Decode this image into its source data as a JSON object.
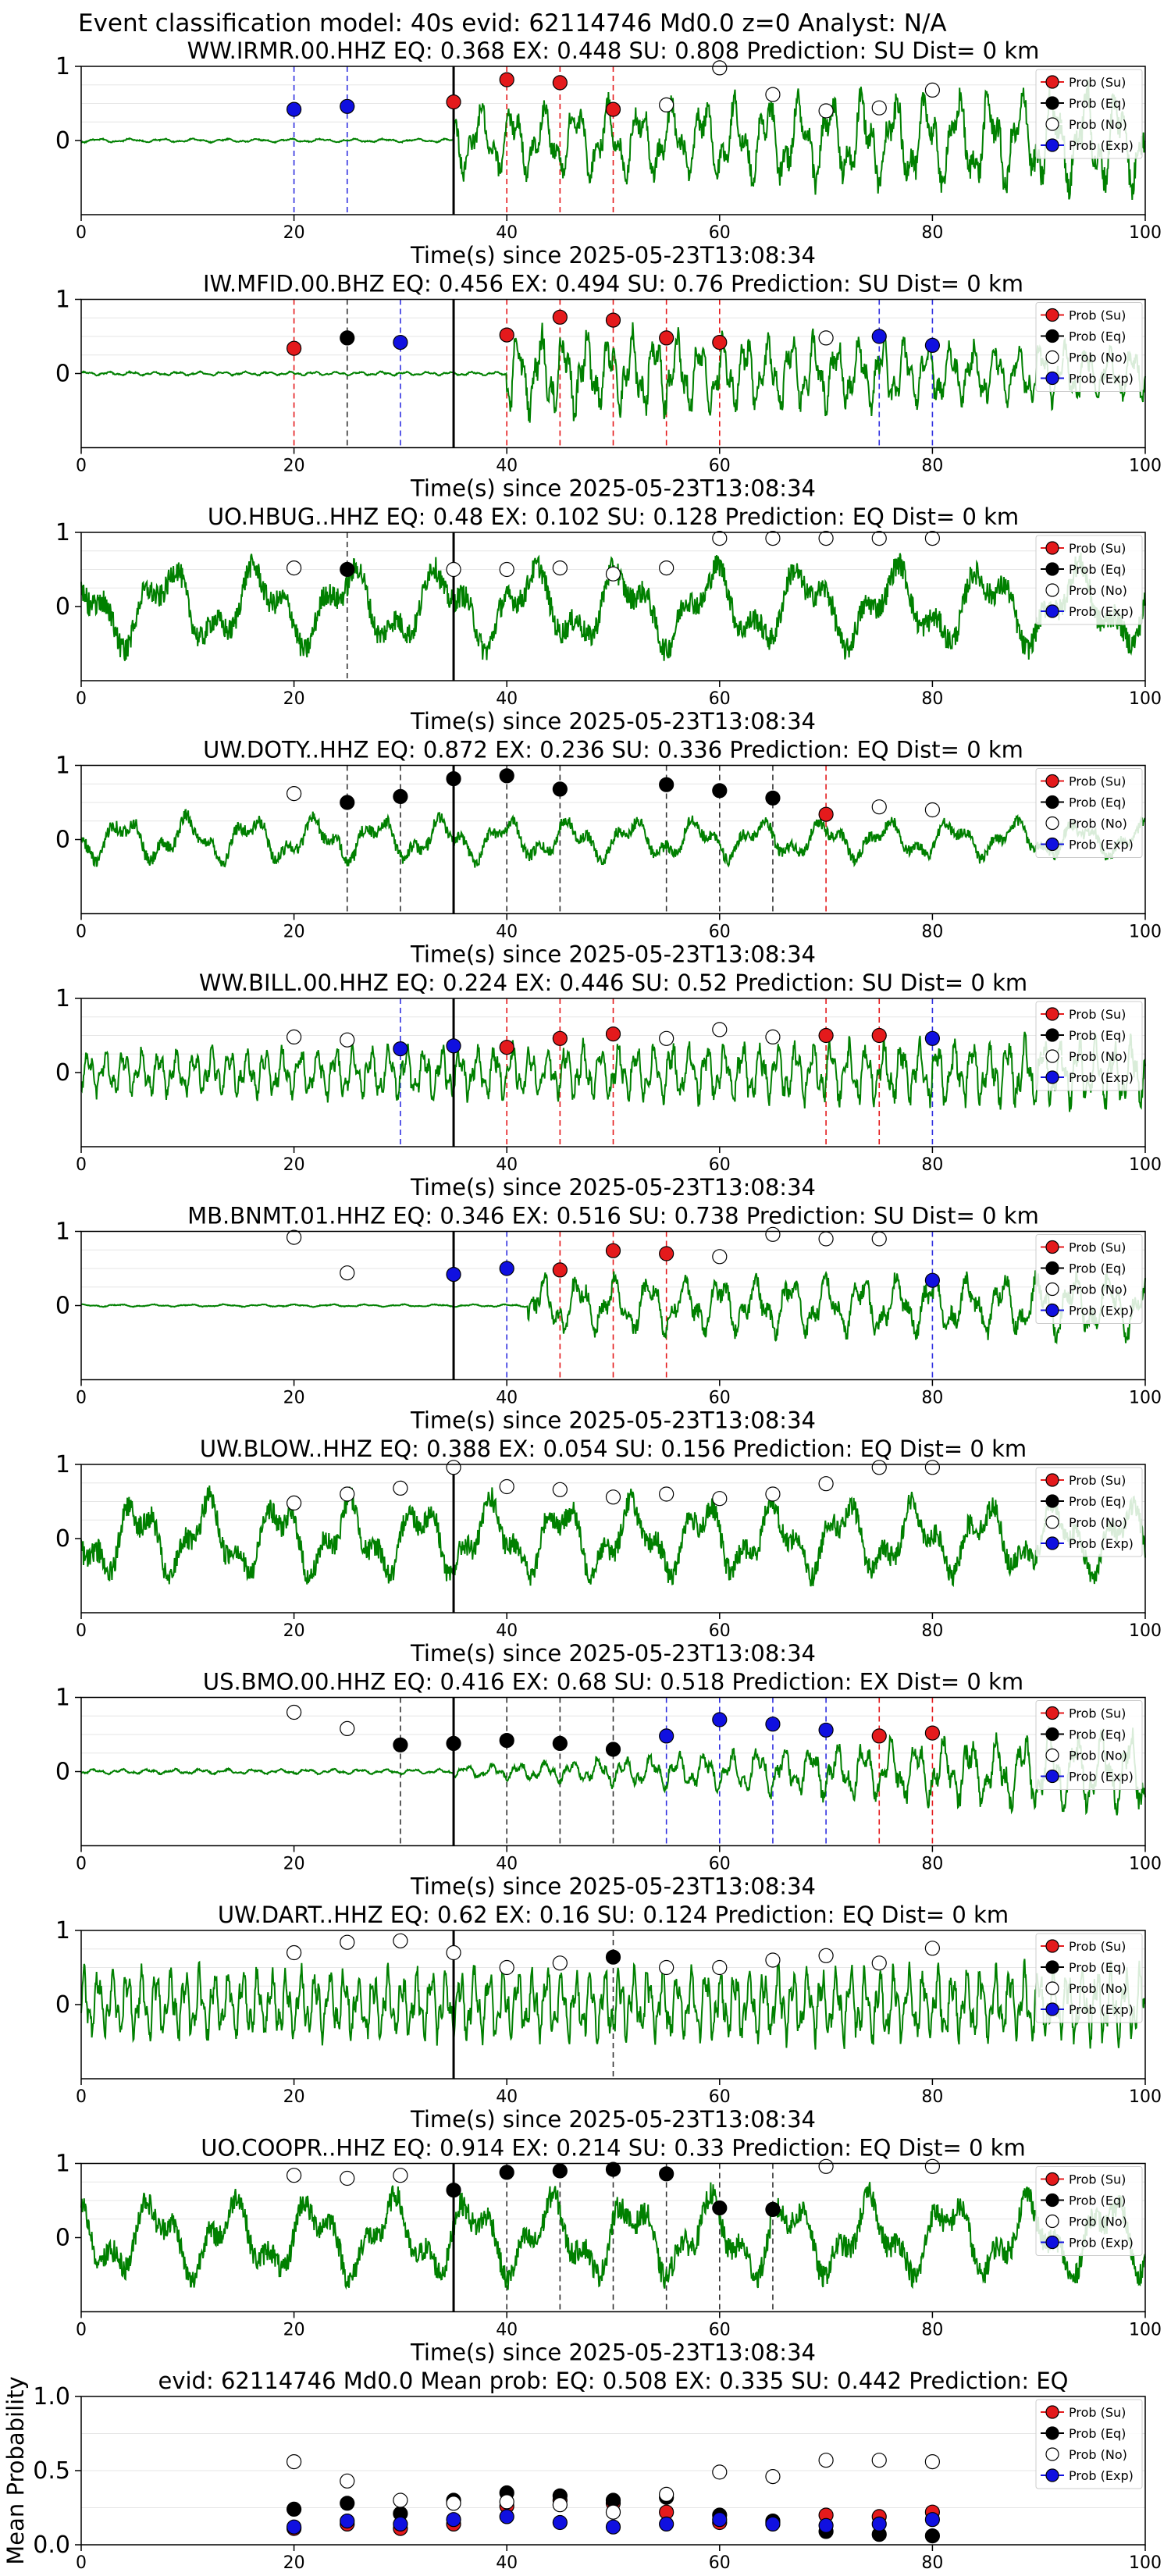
{
  "figure": {
    "title": "Event classification model: 40s evid: 62114746 Md0.0 z=0 Analyst: N/A"
  },
  "colors": {
    "su": "#e41a1c",
    "eq": "#000000",
    "no": "#ffffff",
    "exp": "#1010e0",
    "waveform": "#008000"
  },
  "legend_labels": [
    "Prob (Su)",
    "Prob (Eq)",
    "Prob (No)",
    "Prob (Exp)"
  ],
  "chart_data": [
    {
      "type": "line+scatter",
      "title": "WW.IRMR.00.HHZ   EQ: 0.368  EX: 0.448  SU: 0.808   Prediction: SU    Dist= 0 km",
      "xlabel": "Time(s) since 2025-05-23T13:08:34",
      "xlim": [
        0,
        100
      ],
      "ylim": [
        -1,
        1
      ],
      "x_ticks": [
        "0",
        "20",
        "40",
        "60",
        "80",
        "100"
      ],
      "y_ticks": [
        "0",
        "1"
      ],
      "legend": "top-right",
      "onset_time": 35,
      "waveform": {
        "pre_amp": 0.03,
        "post_amp": 0.55,
        "post_start": 35,
        "end_amp": 0.85,
        "freq": 1.0
      },
      "points": [
        {
          "t": 20,
          "p": 0.42,
          "cls": "exp"
        },
        {
          "t": 25,
          "p": 0.46,
          "cls": "exp"
        },
        {
          "t": 35,
          "p": 0.52,
          "cls": "su"
        },
        {
          "t": 40,
          "p": 0.82,
          "cls": "su"
        },
        {
          "t": 45,
          "p": 0.78,
          "cls": "su"
        },
        {
          "t": 50,
          "p": 0.42,
          "cls": "su"
        },
        {
          "t": 55,
          "p": 0.48,
          "cls": "no"
        },
        {
          "t": 60,
          "p": 0.98,
          "cls": "no"
        },
        {
          "t": 65,
          "p": 0.62,
          "cls": "no"
        },
        {
          "t": 70,
          "p": 0.4,
          "cls": "no"
        },
        {
          "t": 75,
          "p": 0.44,
          "cls": "no"
        },
        {
          "t": 80,
          "p": 0.68,
          "cls": "no"
        }
      ]
    },
    {
      "type": "line+scatter",
      "title": "IW.MFID.00.BHZ   EQ: 0.456  EX: 0.494  SU: 0.76   Prediction: SU    Dist= 0 km",
      "xlabel": "Time(s) since 2025-05-23T13:08:34",
      "xlim": [
        0,
        100
      ],
      "ylim": [
        -1,
        1
      ],
      "x_ticks": [
        "0",
        "20",
        "40",
        "60",
        "80",
        "100"
      ],
      "y_ticks": [
        "0",
        "1"
      ],
      "legend": "top-right",
      "onset_time": 35,
      "waveform": {
        "pre_amp": 0.03,
        "post_amp": 0.7,
        "post_start": 40,
        "end_amp": 0.45,
        "freq": 1.4
      },
      "points": [
        {
          "t": 20,
          "p": 0.34,
          "cls": "su"
        },
        {
          "t": 25,
          "p": 0.48,
          "cls": "eq"
        },
        {
          "t": 30,
          "p": 0.42,
          "cls": "exp"
        },
        {
          "t": 40,
          "p": 0.52,
          "cls": "su"
        },
        {
          "t": 45,
          "p": 0.76,
          "cls": "su"
        },
        {
          "t": 50,
          "p": 0.72,
          "cls": "su"
        },
        {
          "t": 55,
          "p": 0.48,
          "cls": "su"
        },
        {
          "t": 60,
          "p": 0.42,
          "cls": "su"
        },
        {
          "t": 70,
          "p": 0.48,
          "cls": "no"
        },
        {
          "t": 75,
          "p": 0.5,
          "cls": "exp"
        },
        {
          "t": 80,
          "p": 0.38,
          "cls": "exp"
        }
      ]
    },
    {
      "type": "line+scatter",
      "title": "UO.HBUG..HHZ   EQ: 0.48  EX: 0.102  SU: 0.128   Prediction: EQ    Dist= 0 km",
      "xlabel": "Time(s) since 2025-05-23T13:08:34",
      "xlim": [
        0,
        100
      ],
      "ylim": [
        -1,
        1
      ],
      "x_ticks": [
        "0",
        "20",
        "40",
        "60",
        "80",
        "100"
      ],
      "y_ticks": [
        "0",
        "1"
      ],
      "legend": "top-right",
      "onset_time": 35,
      "waveform": {
        "pre_amp": 0.7,
        "post_amp": 0.7,
        "post_start": 0,
        "end_amp": 0.7,
        "freq": 0.35
      },
      "points": [
        {
          "t": 20,
          "p": 0.52,
          "cls": "no"
        },
        {
          "t": 25,
          "p": 0.5,
          "cls": "eq"
        },
        {
          "t": 35,
          "p": 0.5,
          "cls": "no"
        },
        {
          "t": 40,
          "p": 0.5,
          "cls": "no"
        },
        {
          "t": 45,
          "p": 0.52,
          "cls": "no"
        },
        {
          "t": 50,
          "p": 0.44,
          "cls": "no"
        },
        {
          "t": 55,
          "p": 0.52,
          "cls": "no"
        },
        {
          "t": 60,
          "p": 0.92,
          "cls": "no"
        },
        {
          "t": 65,
          "p": 0.92,
          "cls": "no"
        },
        {
          "t": 70,
          "p": 0.92,
          "cls": "no"
        },
        {
          "t": 75,
          "p": 0.92,
          "cls": "no"
        },
        {
          "t": 80,
          "p": 0.92,
          "cls": "no"
        }
      ]
    },
    {
      "type": "line+scatter",
      "title": "UW.DOTY..HHZ   EQ: 0.872  EX: 0.236  SU: 0.336   Prediction: EQ    Dist= 0 km",
      "xlabel": "Time(s) since 2025-05-23T13:08:34",
      "xlim": [
        0,
        100
      ],
      "ylim": [
        -1,
        1
      ],
      "x_ticks": [
        "0",
        "20",
        "40",
        "60",
        "80",
        "100"
      ],
      "y_ticks": [
        "0",
        "1"
      ],
      "legend": "top-right",
      "onset_time": 35,
      "waveform": {
        "pre_amp": 0.35,
        "post_amp": 0.4,
        "post_start": 0,
        "end_amp": 0.3,
        "freq": 0.5
      },
      "points": [
        {
          "t": 20,
          "p": 0.62,
          "cls": "no"
        },
        {
          "t": 25,
          "p": 0.5,
          "cls": "eq"
        },
        {
          "t": 30,
          "p": 0.58,
          "cls": "eq"
        },
        {
          "t": 35,
          "p": 0.82,
          "cls": "eq"
        },
        {
          "t": 40,
          "p": 0.86,
          "cls": "eq"
        },
        {
          "t": 45,
          "p": 0.68,
          "cls": "eq"
        },
        {
          "t": 55,
          "p": 0.74,
          "cls": "eq"
        },
        {
          "t": 60,
          "p": 0.66,
          "cls": "eq"
        },
        {
          "t": 65,
          "p": 0.56,
          "cls": "eq"
        },
        {
          "t": 70,
          "p": 0.34,
          "cls": "su"
        },
        {
          "t": 75,
          "p": 0.44,
          "cls": "no"
        },
        {
          "t": 80,
          "p": 0.4,
          "cls": "no"
        }
      ]
    },
    {
      "type": "line+scatter",
      "title": "WW.BILL.00.HHZ   EQ: 0.224  EX: 0.446  SU: 0.52   Prediction: SU    Dist= 0 km",
      "xlabel": "Time(s) since 2025-05-23T13:08:34",
      "xlim": [
        0,
        100
      ],
      "ylim": [
        -1,
        1
      ],
      "x_ticks": [
        "0",
        "20",
        "40",
        "60",
        "80",
        "100"
      ],
      "y_ticks": [
        "0",
        "1"
      ],
      "legend": "top-right",
      "onset_time": 35,
      "waveform": {
        "pre_amp": 0.35,
        "post_amp": 0.35,
        "post_start": 0,
        "end_amp": 0.55,
        "freq": 1.8
      },
      "points": [
        {
          "t": 20,
          "p": 0.48,
          "cls": "no"
        },
        {
          "t": 25,
          "p": 0.44,
          "cls": "no"
        },
        {
          "t": 30,
          "p": 0.32,
          "cls": "exp"
        },
        {
          "t": 35,
          "p": 0.36,
          "cls": "exp"
        },
        {
          "t": 40,
          "p": 0.34,
          "cls": "su"
        },
        {
          "t": 45,
          "p": 0.46,
          "cls": "su"
        },
        {
          "t": 50,
          "p": 0.52,
          "cls": "su"
        },
        {
          "t": 55,
          "p": 0.46,
          "cls": "no"
        },
        {
          "t": 60,
          "p": 0.58,
          "cls": "no"
        },
        {
          "t": 65,
          "p": 0.48,
          "cls": "no"
        },
        {
          "t": 70,
          "p": 0.5,
          "cls": "su"
        },
        {
          "t": 75,
          "p": 0.5,
          "cls": "su"
        },
        {
          "t": 80,
          "p": 0.46,
          "cls": "exp"
        }
      ]
    },
    {
      "type": "line+scatter",
      "title": "MB.BNMT.01.HHZ   EQ: 0.346  EX: 0.516  SU: 0.738   Prediction: SU    Dist= 0 km",
      "xlabel": "Time(s) since 2025-05-23T13:08:34",
      "xlim": [
        0,
        100
      ],
      "ylim": [
        -1,
        1
      ],
      "x_ticks": [
        "0",
        "20",
        "40",
        "60",
        "80",
        "100"
      ],
      "y_ticks": [
        "0",
        "1"
      ],
      "legend": "top-right",
      "onset_time": 35,
      "waveform": {
        "pre_amp": 0.02,
        "post_amp": 0.45,
        "post_start": 42,
        "end_amp": 0.5,
        "freq": 0.9
      },
      "points": [
        {
          "t": 20,
          "p": 0.92,
          "cls": "no"
        },
        {
          "t": 25,
          "p": 0.44,
          "cls": "no"
        },
        {
          "t": 35,
          "p": 0.42,
          "cls": "exp"
        },
        {
          "t": 40,
          "p": 0.5,
          "cls": "exp"
        },
        {
          "t": 45,
          "p": 0.48,
          "cls": "su"
        },
        {
          "t": 50,
          "p": 0.74,
          "cls": "su"
        },
        {
          "t": 55,
          "p": 0.7,
          "cls": "su"
        },
        {
          "t": 60,
          "p": 0.66,
          "cls": "no"
        },
        {
          "t": 65,
          "p": 0.96,
          "cls": "no"
        },
        {
          "t": 70,
          "p": 0.9,
          "cls": "no"
        },
        {
          "t": 75,
          "p": 0.9,
          "cls": "no"
        },
        {
          "t": 80,
          "p": 0.34,
          "cls": "exp"
        }
      ]
    },
    {
      "type": "line+scatter",
      "title": "UW.BLOW..HHZ   EQ: 0.388  EX: 0.054  SU: 0.156   Prediction: EQ    Dist= 0 km",
      "xlabel": "Time(s) since 2025-05-23T13:08:34",
      "xlim": [
        0,
        100
      ],
      "ylim": [
        -1,
        1
      ],
      "x_ticks": [
        "0",
        "20",
        "40",
        "60",
        "80",
        "100"
      ],
      "y_ticks": [
        "0",
        "1"
      ],
      "legend": "top-right",
      "onset_time": 35,
      "waveform": {
        "pre_amp": 0.65,
        "post_amp": 0.7,
        "post_start": 0,
        "end_amp": 0.6,
        "freq": 0.45
      },
      "points": [
        {
          "t": 20,
          "p": 0.48,
          "cls": "no"
        },
        {
          "t": 25,
          "p": 0.6,
          "cls": "no"
        },
        {
          "t": 30,
          "p": 0.68,
          "cls": "no"
        },
        {
          "t": 35,
          "p": 0.96,
          "cls": "no"
        },
        {
          "t": 40,
          "p": 0.7,
          "cls": "no"
        },
        {
          "t": 45,
          "p": 0.66,
          "cls": "no"
        },
        {
          "t": 50,
          "p": 0.56,
          "cls": "no"
        },
        {
          "t": 55,
          "p": 0.6,
          "cls": "no"
        },
        {
          "t": 60,
          "p": 0.54,
          "cls": "no"
        },
        {
          "t": 65,
          "p": 0.6,
          "cls": "no"
        },
        {
          "t": 70,
          "p": 0.74,
          "cls": "no"
        },
        {
          "t": 75,
          "p": 0.96,
          "cls": "no"
        },
        {
          "t": 80,
          "p": 0.96,
          "cls": "no"
        }
      ]
    },
    {
      "type": "line+scatter",
      "title": "US.BMO.00.HHZ   EQ: 0.416  EX: 0.68  SU: 0.518   Prediction: EX    Dist= 0 km",
      "xlabel": "Time(s) since 2025-05-23T13:08:34",
      "xlim": [
        0,
        100
      ],
      "ylim": [
        -1,
        1
      ],
      "x_ticks": [
        "0",
        "20",
        "40",
        "60",
        "80",
        "100"
      ],
      "y_ticks": [
        "0",
        "1"
      ],
      "legend": "top-right",
      "onset_time": 35,
      "waveform": {
        "pre_amp": 0.04,
        "post_amp": 0.08,
        "post_start": 35,
        "end_amp": 0.7,
        "freq": 1.2
      },
      "points": [
        {
          "t": 20,
          "p": 0.8,
          "cls": "no"
        },
        {
          "t": 25,
          "p": 0.58,
          "cls": "no"
        },
        {
          "t": 30,
          "p": 0.36,
          "cls": "eq"
        },
        {
          "t": 35,
          "p": 0.38,
          "cls": "eq"
        },
        {
          "t": 40,
          "p": 0.42,
          "cls": "eq"
        },
        {
          "t": 45,
          "p": 0.38,
          "cls": "eq"
        },
        {
          "t": 50,
          "p": 0.3,
          "cls": "eq"
        },
        {
          "t": 55,
          "p": 0.48,
          "cls": "exp"
        },
        {
          "t": 60,
          "p": 0.7,
          "cls": "exp"
        },
        {
          "t": 65,
          "p": 0.64,
          "cls": "exp"
        },
        {
          "t": 70,
          "p": 0.56,
          "cls": "exp"
        },
        {
          "t": 75,
          "p": 0.48,
          "cls": "su"
        },
        {
          "t": 80,
          "p": 0.52,
          "cls": "su"
        }
      ]
    },
    {
      "type": "line+scatter",
      "title": "UW.DART..HHZ   EQ: 0.62  EX: 0.16  SU: 0.124   Prediction: EQ    Dist= 0 km",
      "xlabel": "Time(s) since 2025-05-23T13:08:34",
      "xlim": [
        0,
        100
      ],
      "ylim": [
        -1,
        1
      ],
      "x_ticks": [
        "0",
        "20",
        "40",
        "60",
        "80",
        "100"
      ],
      "y_ticks": [
        "0",
        "1"
      ],
      "legend": "top-right",
      "onset_time": 35,
      "waveform": {
        "pre_amp": 0.75,
        "post_amp": 0.55,
        "post_start": 0,
        "end_amp": 0.6,
        "freq": 2.2
      },
      "points": [
        {
          "t": 20,
          "p": 0.7,
          "cls": "no"
        },
        {
          "t": 25,
          "p": 0.84,
          "cls": "no"
        },
        {
          "t": 30,
          "p": 0.86,
          "cls": "no"
        },
        {
          "t": 35,
          "p": 0.7,
          "cls": "no"
        },
        {
          "t": 40,
          "p": 0.5,
          "cls": "no"
        },
        {
          "t": 45,
          "p": 0.56,
          "cls": "no"
        },
        {
          "t": 50,
          "p": 0.64,
          "cls": "eq"
        },
        {
          "t": 55,
          "p": 0.5,
          "cls": "no"
        },
        {
          "t": 60,
          "p": 0.5,
          "cls": "no"
        },
        {
          "t": 65,
          "p": 0.6,
          "cls": "no"
        },
        {
          "t": 70,
          "p": 0.66,
          "cls": "no"
        },
        {
          "t": 75,
          "p": 0.56,
          "cls": "no"
        },
        {
          "t": 80,
          "p": 0.76,
          "cls": "no"
        }
      ]
    },
    {
      "type": "line+scatter",
      "title": "UO.COOPR..HHZ   EQ: 0.914  EX: 0.214  SU: 0.33   Prediction: EQ    Dist= 0 km",
      "xlabel": "Time(s) since 2025-05-23T13:08:34",
      "xlim": [
        0,
        100
      ],
      "ylim": [
        -1,
        1
      ],
      "x_ticks": [
        "0",
        "20",
        "40",
        "60",
        "80",
        "100"
      ],
      "y_ticks": [
        "0",
        "1"
      ],
      "legend": "top-right",
      "onset_time": 35,
      "waveform": {
        "pre_amp": 0.75,
        "post_amp": 0.7,
        "post_start": 0,
        "end_amp": 0.7,
        "freq": 0.4
      },
      "points": [
        {
          "t": 20,
          "p": 0.84,
          "cls": "no"
        },
        {
          "t": 25,
          "p": 0.8,
          "cls": "no"
        },
        {
          "t": 30,
          "p": 0.84,
          "cls": "no"
        },
        {
          "t": 35,
          "p": 0.64,
          "cls": "eq"
        },
        {
          "t": 40,
          "p": 0.88,
          "cls": "eq"
        },
        {
          "t": 45,
          "p": 0.9,
          "cls": "eq"
        },
        {
          "t": 50,
          "p": 0.92,
          "cls": "eq"
        },
        {
          "t": 55,
          "p": 0.86,
          "cls": "eq"
        },
        {
          "t": 60,
          "p": 0.4,
          "cls": "eq"
        },
        {
          "t": 65,
          "p": 0.38,
          "cls": "eq"
        },
        {
          "t": 70,
          "p": 0.96,
          "cls": "no"
        },
        {
          "t": 80,
          "p": 0.96,
          "cls": "no"
        }
      ]
    },
    {
      "type": "scatter",
      "title": "evid: 62114746  Md0.0   Mean prob:   EQ: 0.508  EX: 0.335  SU: 0.442   Prediction: EQ",
      "ylabel": "Mean Probability",
      "xlim": [
        0,
        100
      ],
      "ylim": [
        0,
        1
      ],
      "x_ticks": [
        "0",
        "20",
        "40",
        "60",
        "80",
        "100"
      ],
      "y_ticks": [
        "0.0",
        "0.5",
        "1.0"
      ],
      "legend": "top-right",
      "x": [
        20,
        25,
        30,
        35,
        40,
        45,
        50,
        55,
        60,
        65,
        70,
        75,
        80
      ],
      "series": [
        {
          "name": "Prob (Su)",
          "cls": "su",
          "values": [
            0.11,
            0.14,
            0.11,
            0.14,
            0.26,
            0.3,
            0.28,
            0.22,
            0.15,
            0.15,
            0.2,
            0.19,
            0.22
          ]
        },
        {
          "name": "Prob (Eq)",
          "cls": "eq",
          "values": [
            0.24,
            0.28,
            0.21,
            0.3,
            0.35,
            0.33,
            0.3,
            0.32,
            0.2,
            0.16,
            0.09,
            0.07,
            0.06
          ]
        },
        {
          "name": "Prob (No)",
          "cls": "no",
          "values": [
            0.56,
            0.43,
            0.3,
            0.28,
            0.29,
            0.27,
            0.22,
            0.34,
            0.49,
            0.46,
            0.57,
            0.57,
            0.56
          ]
        },
        {
          "name": "Prob (Exp)",
          "cls": "exp",
          "values": [
            0.12,
            0.16,
            0.14,
            0.17,
            0.19,
            0.15,
            0.12,
            0.14,
            0.17,
            0.14,
            0.13,
            0.14,
            0.17
          ]
        }
      ]
    }
  ]
}
